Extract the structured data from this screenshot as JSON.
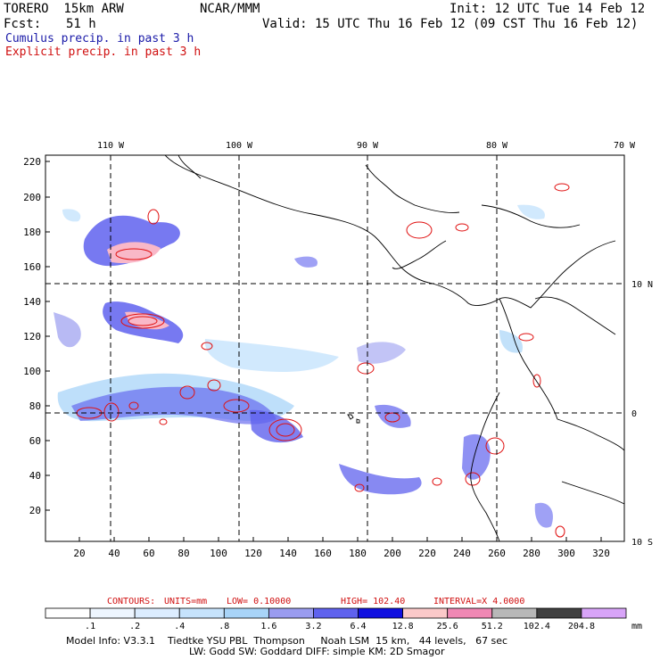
{
  "header": {
    "model": "TORERO  15km ARW",
    "org": "NCAR/MMM",
    "init": "Init: 12 UTC Tue 14 Feb 12",
    "fcst_label": "Fcst:",
    "fcst_value": "51 h",
    "valid": "Valid: 15 UTC Thu 16 Feb 12 (09 CST Thu 16 Feb 12)",
    "legend_cumulus": "Cumulus precip. in past 3 h",
    "legend_explicit": "Explicit precip. in past 3 h"
  },
  "map": {
    "lon_labels": [
      "110 W",
      "100 W",
      "90 W",
      "80 W",
      "70 W"
    ],
    "lat_labels": [
      "10 N",
      "0",
      "10 S"
    ],
    "y_ticks": [
      "220",
      "200",
      "180",
      "160",
      "140",
      "120",
      "100",
      "80",
      "60",
      "40",
      "20"
    ],
    "x_ticks": [
      "20",
      "40",
      "60",
      "80",
      "100",
      "120",
      "140",
      "160",
      "180",
      "200",
      "220",
      "240",
      "260",
      "280",
      "300",
      "320"
    ],
    "grid_x": [
      40,
      112,
      184,
      260
    ],
    "grid_y": [
      76,
      150
    ]
  },
  "contours": {
    "label": "CONTOURS:",
    "units": "UNITS=mm",
    "low": "LOW= 0.10000",
    "high": "HIGH=  102.40",
    "interval": "INTERVAL=X  4.0000"
  },
  "colorbar": {
    "labels": [
      ".1",
      ".2",
      ".4",
      ".8",
      "1.6",
      "3.2",
      "6.4",
      "12.8",
      "25.6",
      "51.2",
      "102.4",
      "204.8"
    ],
    "unit": "mm",
    "colors": [
      "#ffffff",
      "#eef6ff",
      "#dcedff",
      "#c6e3fc",
      "#a8d4f8",
      "#9a9cf0",
      "#5f62ee",
      "#1010e0",
      "#fbc9c9",
      "#f088b4",
      "#b8b8b8",
      "#404040",
      "#d8a4f8"
    ]
  },
  "footer": {
    "line1": "Model Info: V3.3.1    Tiedtke YSU PBL  Thompson     Noah LSM  15 km,   44 levels,   67 sec",
    "line2": "LW: Godd SW: Goddard DIFF: simple KM: 2D Smagor"
  }
}
